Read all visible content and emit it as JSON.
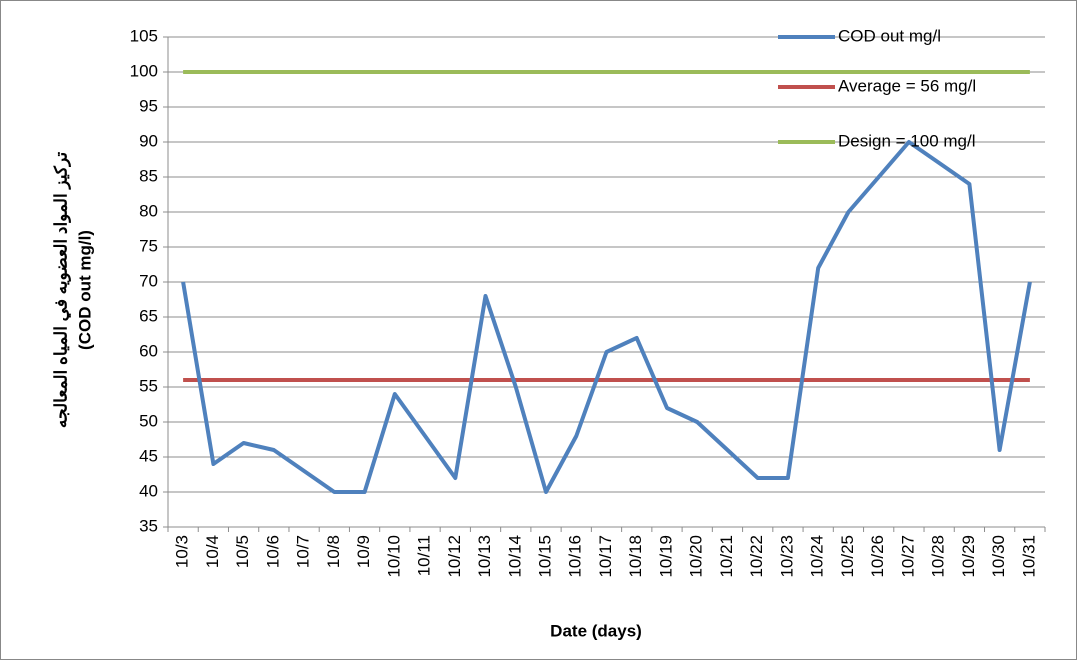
{
  "chart_data": {
    "type": "line",
    "ylabel": [
      "تركيز المواد العضويه في المياه المعالجه",
      "(COD out mg/l)"
    ],
    "xlabel": "Date (days)",
    "categories": [
      "10/3",
      "10/4",
      "10/5",
      "10/6",
      "10/7",
      "10/8",
      "10/9",
      "10/10",
      "10/11",
      "10/12",
      "10/13",
      "10/14",
      "10/15",
      "10/16",
      "10/17",
      "10/18",
      "10/19",
      "10/20",
      "10/21",
      "10/22",
      "10/23",
      "10/24",
      "10/25",
      "10/26",
      "10/27",
      "10/28",
      "10/29",
      "10/30",
      "10/31"
    ],
    "series": [
      {
        "name": "COD out mg/l",
        "color": "#4f81bd",
        "values": [
          70,
          44,
          47,
          46,
          43,
          40,
          40,
          54,
          48,
          42,
          68,
          55,
          40,
          48,
          60,
          62,
          52,
          50,
          46,
          42,
          42,
          72,
          80,
          85,
          90,
          87,
          84,
          46,
          70
        ]
      },
      {
        "name": "Average = 56 mg/l",
        "color": "#c0504d",
        "values": [
          56,
          56,
          56,
          56,
          56,
          56,
          56,
          56,
          56,
          56,
          56,
          56,
          56,
          56,
          56,
          56,
          56,
          56,
          56,
          56,
          56,
          56,
          56,
          56,
          56,
          56,
          56,
          56,
          56
        ]
      },
      {
        "name": "Design = 100 mg/l",
        "color": "#9bbb59",
        "values": [
          100,
          100,
          100,
          100,
          100,
          100,
          100,
          100,
          100,
          100,
          100,
          100,
          100,
          100,
          100,
          100,
          100,
          100,
          100,
          100,
          100,
          100,
          100,
          100,
          100,
          100,
          100,
          100,
          100
        ]
      }
    ],
    "ylim": [
      35,
      105
    ],
    "yticks": [
      35,
      40,
      45,
      50,
      55,
      60,
      65,
      70,
      75,
      80,
      85,
      90,
      95,
      100,
      105
    ],
    "grid": true,
    "legend": "upper-right"
  }
}
